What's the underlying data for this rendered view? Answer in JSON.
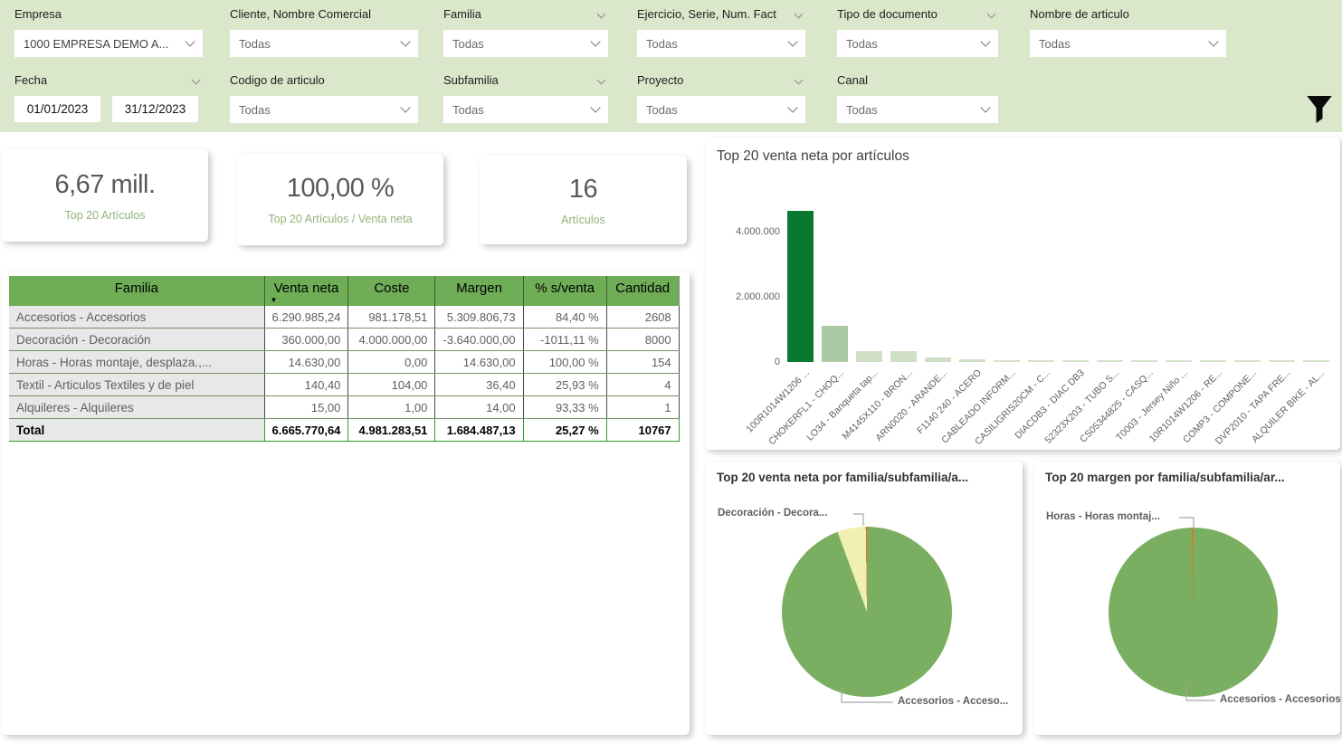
{
  "colors": {
    "filterbar_bg": "#dbe7cb",
    "table_header_green": "#6fae57",
    "bar_dark_green": "#08792f",
    "bar_medium_green": "#abc9a4",
    "bar_light_green": "#cfe0c6",
    "pie_green": "#7aae60",
    "pie_yellow": "#f2efb3",
    "pie_orange": "#e8701a",
    "kpi_label_green": "#93b277"
  },
  "filters": {
    "row1": [
      {
        "label": "Empresa",
        "value": "1000 EMPRESA DEMO A...",
        "header_chevron": false
      },
      {
        "label": "Cliente, Nombre Comercial",
        "value": "Todas",
        "header_chevron": false
      },
      {
        "label": "Familia",
        "value": "Todas",
        "header_chevron": true
      },
      {
        "label": "Ejercicio, Serie, Num. Fact",
        "value": "Todas",
        "header_chevron": true
      },
      {
        "label": "Tipo de documento",
        "value": "Todas",
        "header_chevron": true
      },
      {
        "label": "Nombre de articulo",
        "value": "Todas",
        "header_chevron": false
      }
    ],
    "row2": [
      {
        "label": "Fecha",
        "date_from": "01/01/2023",
        "date_to": "31/12/2023",
        "header_chevron": true
      },
      {
        "label": "Codigo de articulo",
        "value": "Todas",
        "header_chevron": false
      },
      {
        "label": "Subfamilia",
        "value": "Todas",
        "header_chevron": true
      },
      {
        "label": "Proyecto",
        "value": "Todas",
        "header_chevron": true
      },
      {
        "label": "Canal",
        "value": "Todas",
        "header_chevron": false
      }
    ]
  },
  "kpis": [
    {
      "value": "6,67 mill.",
      "label": "Top 20 Artículos"
    },
    {
      "value": "100,00 %",
      "label": "Top 20 Artículos / Venta neta"
    },
    {
      "value": "16",
      "label": "Artículos"
    }
  ],
  "table": {
    "columns": [
      "Familia",
      "Venta neta",
      "Coste",
      "Margen",
      "% s/venta",
      "Cantidad"
    ],
    "sorted_column": "Venta neta",
    "sort_direction": "desc",
    "rows": [
      [
        "Accesorios - Accesorios",
        "6.290.985,24",
        "981.178,51",
        "5.309.806,73",
        "84,40 %",
        "2608"
      ],
      [
        "Decoración - Decoración",
        "360.000,00",
        "4.000.000,00",
        "-3.640.000,00",
        "-1011,11 %",
        "8000"
      ],
      [
        "Horas - Horas montaje, desplaza.,...",
        "14.630,00",
        "0,00",
        "14.630,00",
        "100,00 %",
        "154"
      ],
      [
        "Textil - Articulos Textiles y de piel",
        "140,40",
        "104,00",
        "36,40",
        "25,93 %",
        "4"
      ],
      [
        "Alquileres - Alquileres",
        "15,00",
        "1,00",
        "14,00",
        "93,33 %",
        "1"
      ]
    ],
    "total": [
      "Total",
      "6.665.770,64",
      "4.981.283,51",
      "1.684.487,13",
      "25,27 %",
      "10767"
    ]
  },
  "chart_data": [
    {
      "type": "bar",
      "title": "Top 20 venta neta por artículos",
      "categories": [
        "100R1014W1206 ...",
        "CHOKERFL1 - CHOQ...",
        "LO34 - Banqueta tap...",
        "M4145X110 - BRON...",
        "ARN0020 - ARANDE...",
        "F1140 240 - ACERO",
        "CABLEADO INFORM...",
        "CASILIGRIS20CM - C...",
        "DIACDB3 - DIAC DB3",
        "52323X203 - TUBO S...",
        "CS05344825 - CASQ...",
        "T0003 - Jersey Niño ...",
        "10R1014W1206 - RE...",
        "COMP3 - COMPONE...",
        "DVP2010 - TAPA FRE...",
        "ALQUILER BIKE - AL..."
      ],
      "values": [
        4630000,
        1120000,
        345000,
        320000,
        135000,
        85000,
        30000,
        26000,
        22000,
        19000,
        17000,
        15000,
        13000,
        11000,
        9000,
        7000
      ],
      "colors": [
        "#08792f",
        "#abc9a4",
        "#cfe0c6",
        "#cfe0c6",
        "#cfe0c6",
        "#cfe0c6",
        "#d4e2cb",
        "#d4e2cb",
        "#d4e2cb",
        "#d4e2cb",
        "#d4e2cb",
        "#d4e2cb",
        "#d4e2cb",
        "#d4e2cb",
        "#d4e2cb",
        "#d4e2cb"
      ],
      "ylim": [
        0,
        4800000
      ],
      "yticks": [
        {
          "value": 0,
          "label": "0"
        },
        {
          "value": 2000000,
          "label": "2.000.000"
        },
        {
          "value": 4000000,
          "label": "4.000.000"
        }
      ],
      "grid": false,
      "legend": "none"
    },
    {
      "type": "pie",
      "title": "Top 20 venta neta por familia/subfamilia/a...",
      "slices": [
        {
          "name": "Accesorios - Acceso...",
          "value": 6290985.24,
          "color": "#7aae60"
        },
        {
          "name": "Decoración - Decora...",
          "value": 360000,
          "color": "#f2efb3"
        },
        {
          "name": "",
          "value": 14630,
          "color": "#e8701a"
        }
      ],
      "callouts": {
        "top": "Decoración - Decora...",
        "bottom": "Accesorios - Acceso..."
      }
    },
    {
      "type": "pie",
      "title": "Top 20 margen por familia/subfamilia/ar...",
      "slices": [
        {
          "name": "Accesorios - Accesorios",
          "value": 5309806.73,
          "color": "#7aae60"
        },
        {
          "name": "Horas - Horas montaj...",
          "value": 14630,
          "color": "#e8701a"
        }
      ],
      "callouts": {
        "top": "Horas - Horas montaj...",
        "bottom": "Accesorios - Accesorios"
      }
    }
  ]
}
